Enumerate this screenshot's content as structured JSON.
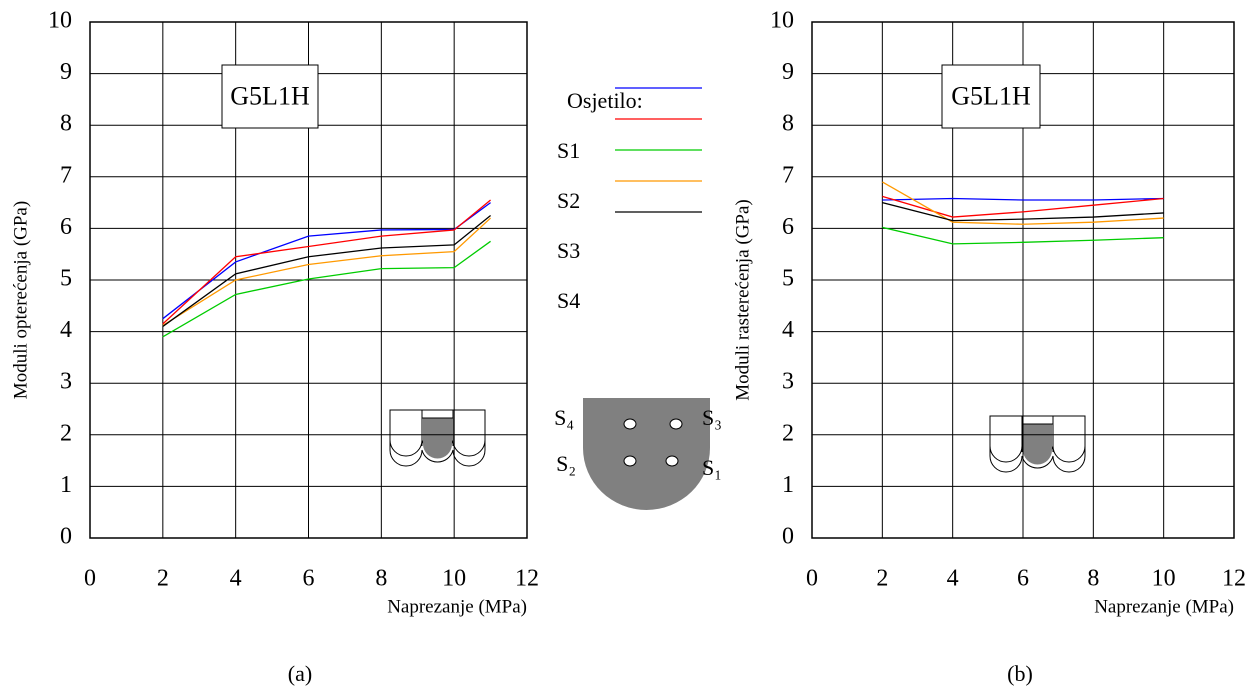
{
  "chart_data": [
    {
      "type": "line",
      "annotation": "G5L1H",
      "x_label": "Naprezanje (MPa)",
      "y_label": "Moduli opterećenja (GPa)",
      "caption": "(a)",
      "legend_title": "Osjetilo:",
      "x": [
        2,
        4,
        6,
        8,
        10,
        11
      ],
      "series": [
        {
          "name": "S1",
          "color": "#0000ff",
          "values": [
            4.25,
            5.35,
            5.85,
            5.97,
            5.98,
            6.5
          ]
        },
        {
          "name": "S2",
          "color": "#ff0000",
          "values": [
            4.15,
            5.45,
            5.65,
            5.85,
            5.97,
            6.55
          ]
        },
        {
          "name": "S3",
          "color": "#00cc00",
          "values": [
            3.9,
            4.72,
            5.02,
            5.22,
            5.24,
            5.75
          ]
        },
        {
          "name": "S4",
          "color": "#ff9900",
          "values": [
            4.12,
            5.0,
            5.3,
            5.47,
            5.55,
            6.2
          ]
        },
        {
          "color": "#000000",
          "values": [
            4.1,
            5.12,
            5.45,
            5.62,
            5.68,
            6.25
          ]
        }
      ],
      "xlim": [
        0,
        12
      ],
      "xticks": [
        0,
        2,
        4,
        6,
        8,
        10,
        12
      ],
      "ylim": [
        0,
        10
      ],
      "yticks": [
        0,
        1,
        2,
        3,
        4,
        5,
        6,
        7,
        8,
        9,
        10
      ],
      "grid": true
    },
    {
      "type": "line",
      "annotation": "G5L1H",
      "x_label": "Naprezanje (MPa)",
      "y_label": "Moduli rasterećenja  (GPa)",
      "caption": "(b)",
      "x": [
        2,
        4,
        6,
        8,
        10
      ],
      "series": [
        {
          "name": "S1",
          "color": "#0000ff",
          "values": [
            6.55,
            6.58,
            6.55,
            6.55,
            6.58
          ]
        },
        {
          "name": "S2",
          "color": "#ff0000",
          "values": [
            6.62,
            6.22,
            6.32,
            6.45,
            6.58
          ]
        },
        {
          "name": "S3",
          "color": "#00cc00",
          "values": [
            6.02,
            5.7,
            5.73,
            5.77,
            5.82
          ]
        },
        {
          "name": "S4",
          "color": "#ff9900",
          "values": [
            6.9,
            6.12,
            6.08,
            6.12,
            6.2
          ]
        },
        {
          "color": "#000000",
          "values": [
            6.5,
            6.15,
            6.18,
            6.22,
            6.3
          ]
        }
      ],
      "xlim": [
        0,
        12
      ],
      "xticks": [
        0,
        2,
        4,
        6,
        8,
        10,
        12
      ],
      "ylim": [
        0,
        10
      ],
      "yticks": [
        0,
        1,
        2,
        3,
        4,
        5,
        6,
        7,
        8,
        9,
        10
      ],
      "grid": true
    }
  ],
  "sensor_diagram": {
    "labels": [
      "S₄",
      "S₃",
      "S₂",
      "S₁"
    ]
  }
}
